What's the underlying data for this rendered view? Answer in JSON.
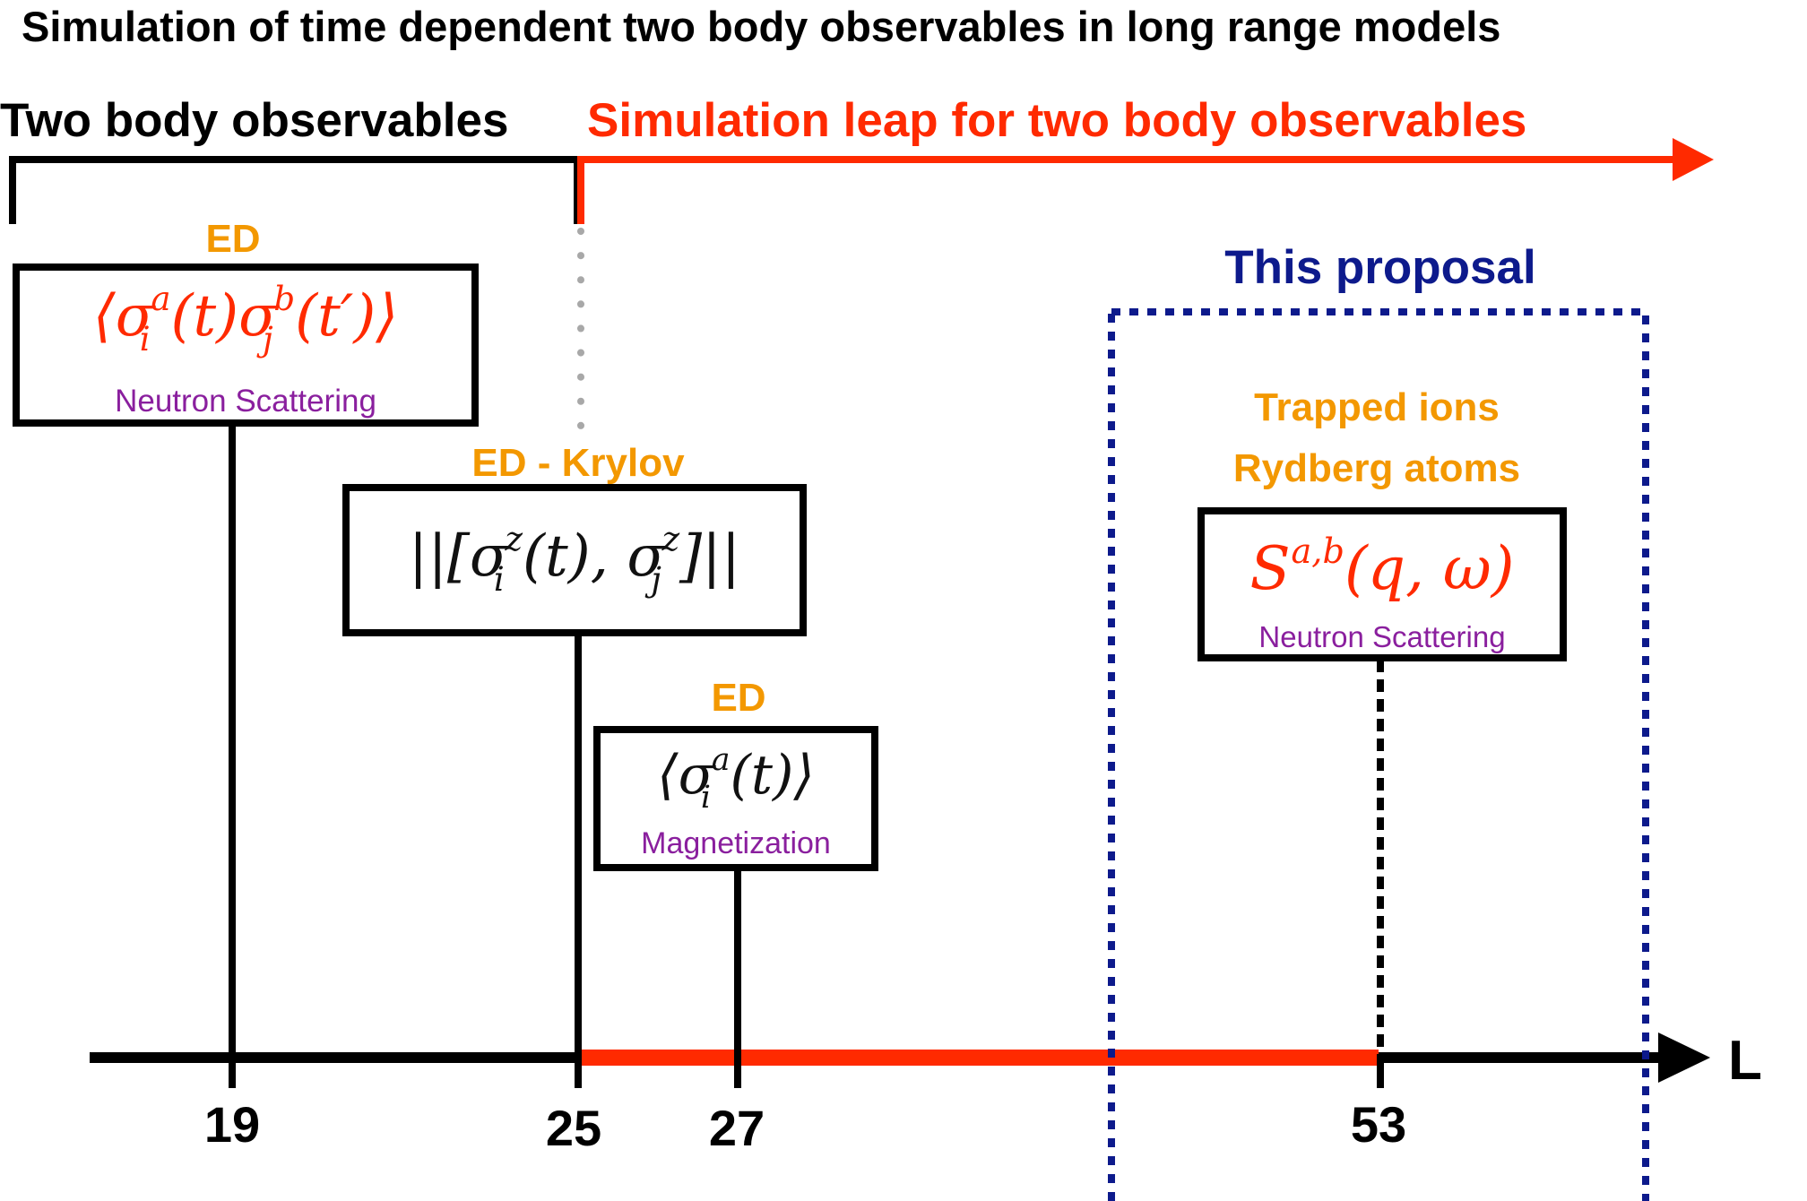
{
  "title": "Simulation of time dependent two body observables in long range models",
  "header": {
    "left_label": "Two body observables",
    "right_label": "Simulation leap for two body observables"
  },
  "axis": {
    "label": "L",
    "ticks": [
      "19",
      "25",
      "27",
      "53"
    ]
  },
  "methods": [
    {
      "method": "ED",
      "formula": "⟨σ_i^a(t)σ_j^b(t′)⟩",
      "caption": "Neutron Scattering",
      "L": "19"
    },
    {
      "method": "ED - Krylov",
      "formula": "||[σ_i^z(t), σ_j^z]||",
      "caption": "",
      "L": "25"
    },
    {
      "method": "ED",
      "formula": "⟨σ_i^a(t)⟩",
      "caption": "Magnetization",
      "L": "27"
    }
  ],
  "proposal": {
    "label": "This proposal",
    "platform_line1": "Trapped ions",
    "platform_line2": "Rydberg atoms",
    "formula": "S^{a,b}(q, ω)",
    "caption": "Neutron Scattering",
    "L": "53"
  },
  "colors": {
    "accent_red": "#ff2a00",
    "method_orange": "#f39800",
    "caption_purple": "#8a1f9e",
    "proposal_navy": "#0d1a8c",
    "dotted_gray": "#a8a8a8"
  }
}
